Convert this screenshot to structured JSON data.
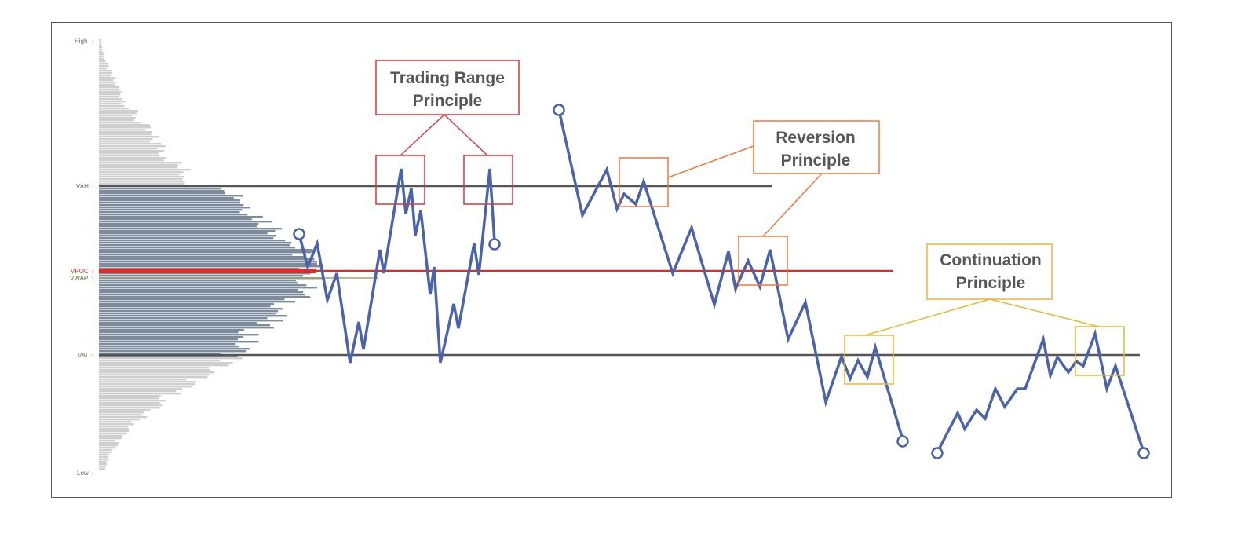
{
  "levels": {
    "high": "High",
    "vah": "VAH",
    "vpoc": "VPOC",
    "vwap": "VWAP",
    "val": "VAL",
    "low": "Low"
  },
  "callouts": {
    "trading_range": {
      "line1": "Trading Range",
      "line2": "Principle",
      "color": "#d9363e"
    },
    "reversion": {
      "line1": "Reversion",
      "line2": "Principle",
      "color": "#ea7a3d"
    },
    "continuation": {
      "line1": "Continuation",
      "line2": "Principle",
      "color": "#e8b632"
    }
  },
  "colors": {
    "price_line": "#4a63ad",
    "vpoc_line": "#e02b2b",
    "level_line": "#555555",
    "volume_in_value_area": "#7c8c9c",
    "volume_outside_value_area": "#cfcfcf"
  }
}
